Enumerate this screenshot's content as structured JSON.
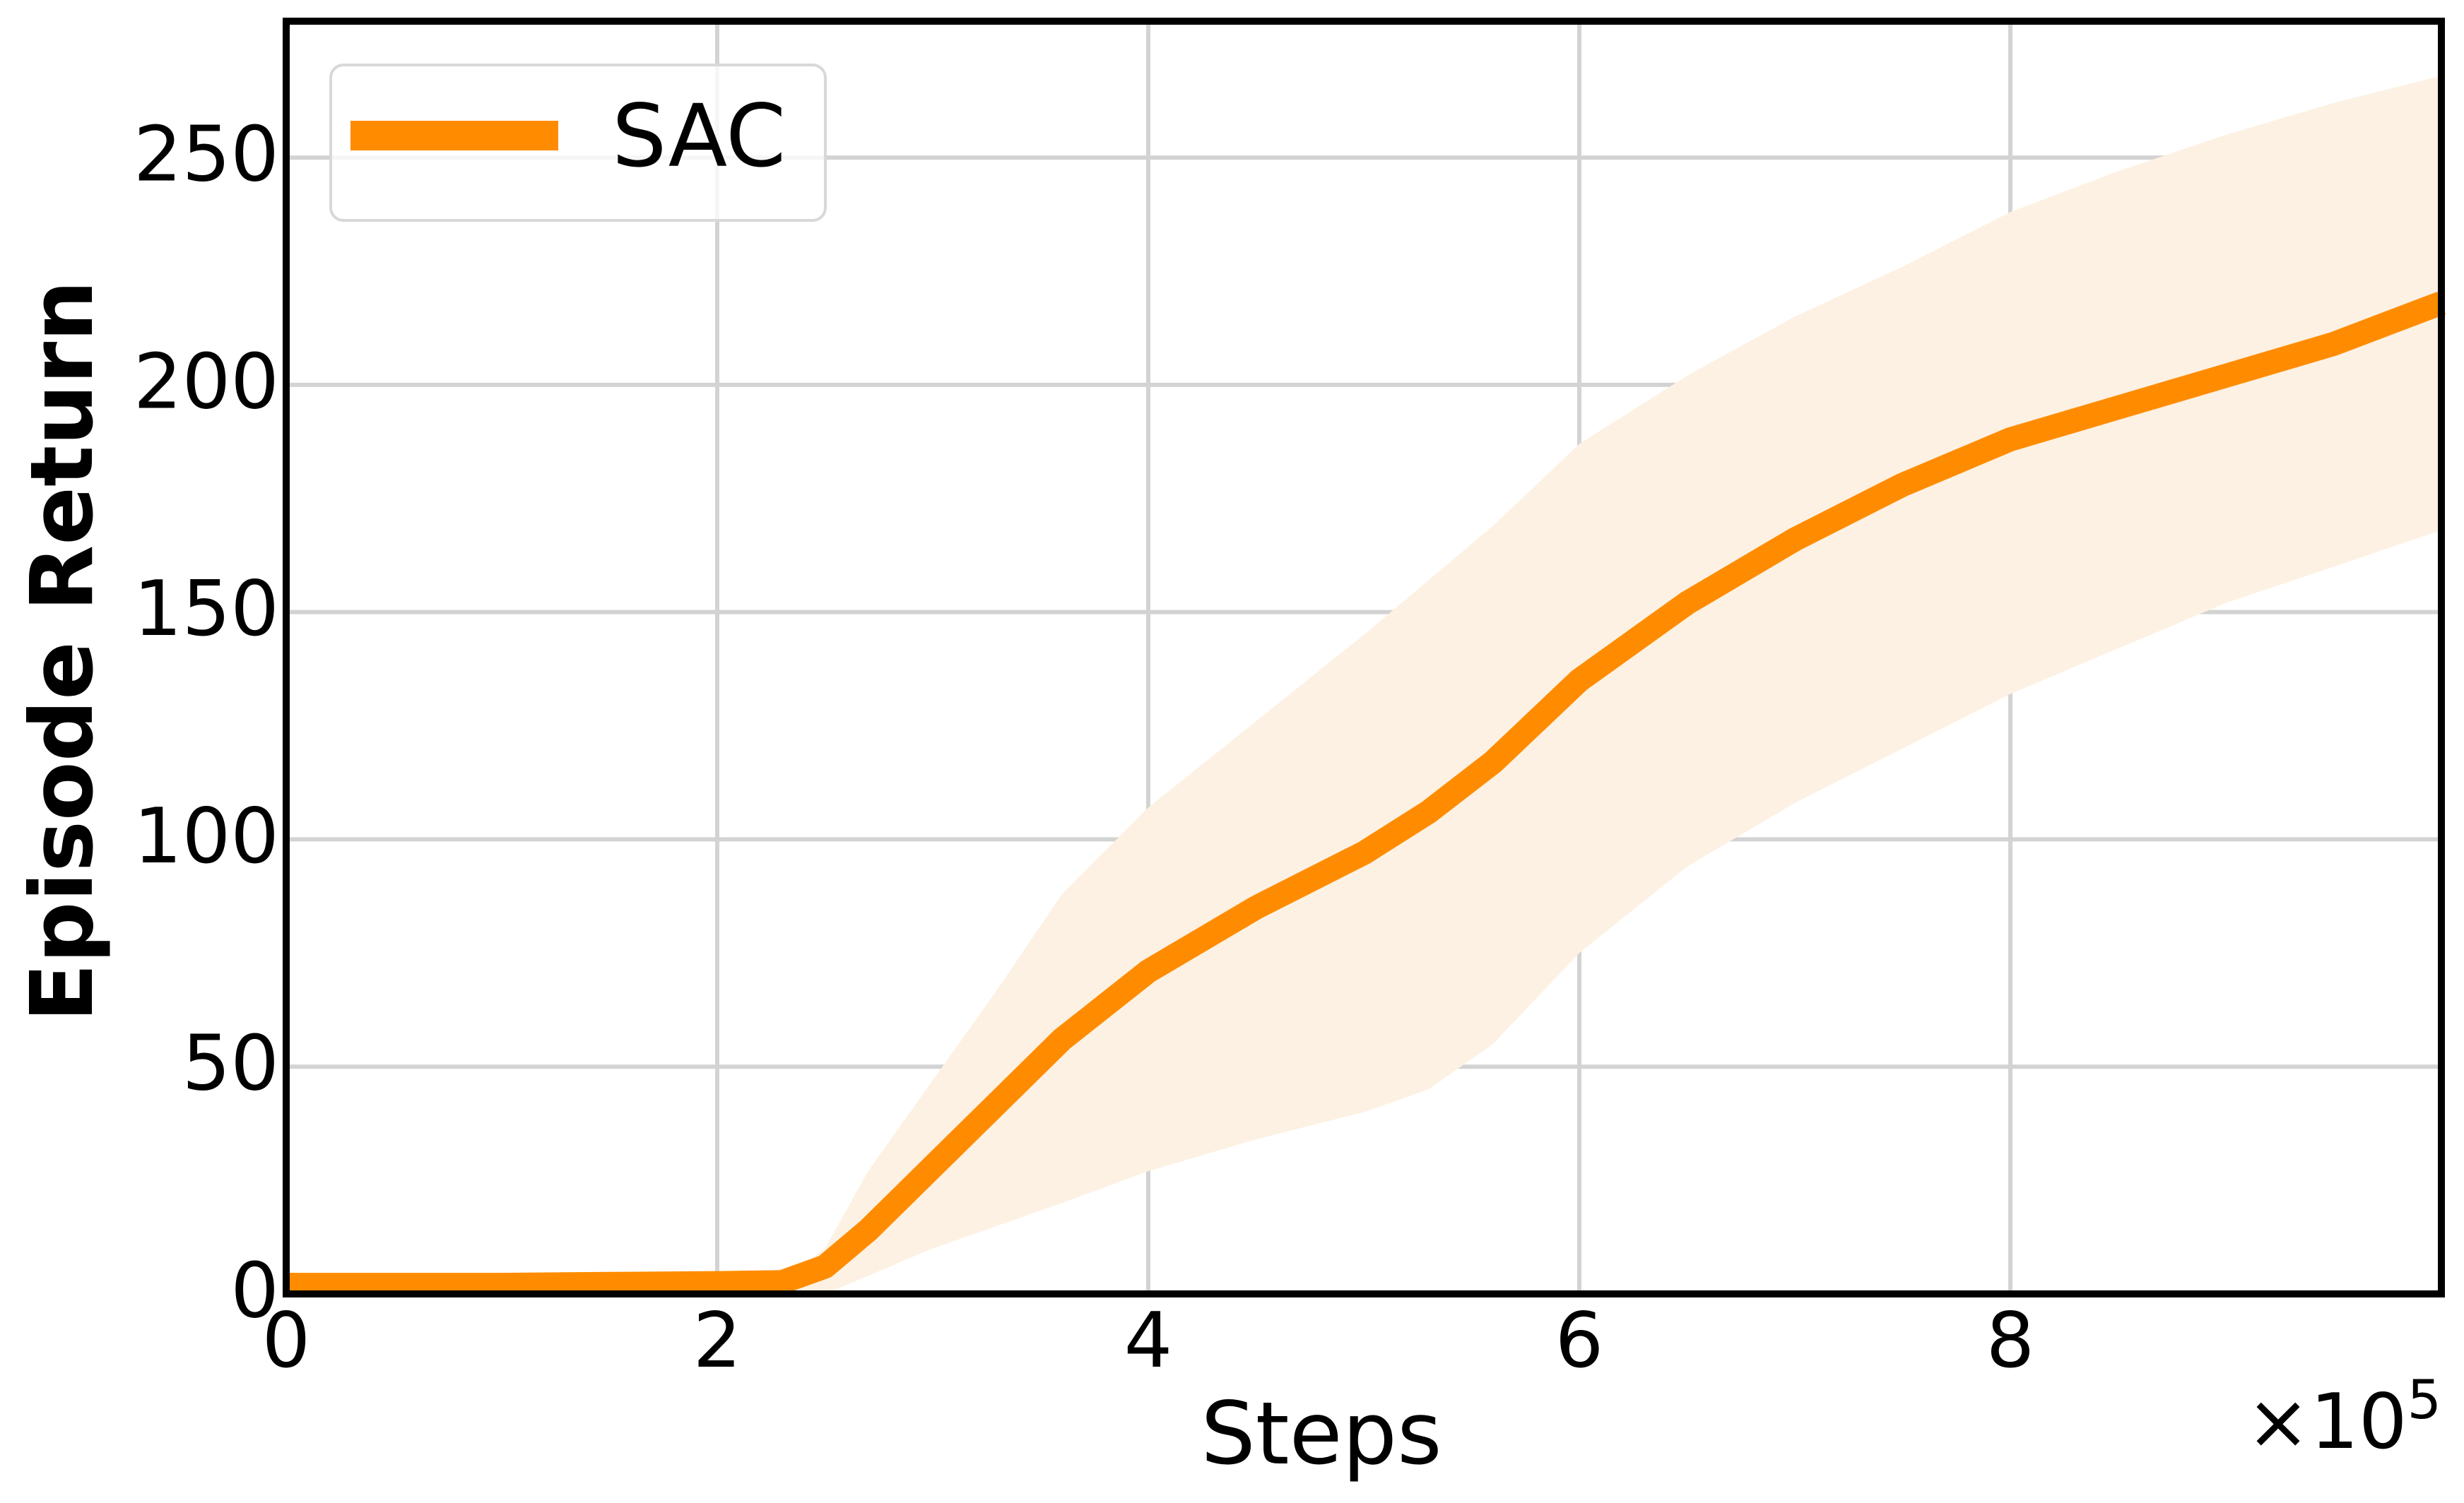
{
  "chart_data": {
    "type": "line",
    "title": "",
    "xlabel": "Steps",
    "ylabel": "Episode Return",
    "x_multiplier_label": "×10",
    "x_multiplier_exponent": "5",
    "xlim": [
      0,
      10
    ],
    "ylim": [
      0,
      280
    ],
    "xticks": [
      0,
      2,
      4,
      6,
      8
    ],
    "xtick_labels": [
      "0",
      "2",
      "4",
      "6",
      "8"
    ],
    "yticks": [
      0,
      50,
      100,
      150,
      200,
      250
    ],
    "ytick_labels": [
      "0",
      "50",
      "100",
      "150",
      "200",
      "250"
    ],
    "grid": true,
    "legend_position": "top-left",
    "colors": {
      "line": "#ff8c00",
      "band": "#fdf1e3",
      "grid": "#d3d3d3",
      "axes": "#000000"
    },
    "series": [
      {
        "name": "SAC",
        "x": [
          0,
          0.5,
          1.0,
          1.5,
          2.0,
          2.3,
          2.5,
          2.7,
          3.0,
          3.3,
          3.6,
          4.0,
          4.5,
          5.0,
          5.3,
          5.6,
          6.0,
          6.5,
          7.0,
          7.5,
          8.0,
          8.5,
          9.0,
          9.5,
          10.0
        ],
        "mean": [
          2,
          2,
          2,
          2.2,
          2.4,
          2.6,
          6,
          14,
          28,
          42,
          56,
          71,
          85,
          97,
          106,
          117,
          135,
          152,
          166,
          178,
          188,
          195,
          202,
          209,
          218
        ],
        "lower": [
          0,
          0,
          0,
          0,
          0,
          0,
          0,
          4,
          10,
          15,
          20,
          27,
          34,
          40,
          45,
          55,
          75,
          94,
          108,
          120,
          132,
          142,
          152,
          160,
          168
        ],
        "upper": [
          2.5,
          2.5,
          2.5,
          2.7,
          3.0,
          3.2,
          10,
          27,
          47,
          67,
          88,
          107,
          126,
          145,
          157,
          169,
          187,
          202,
          215,
          226,
          238,
          247,
          255,
          262,
          268
        ]
      }
    ]
  }
}
